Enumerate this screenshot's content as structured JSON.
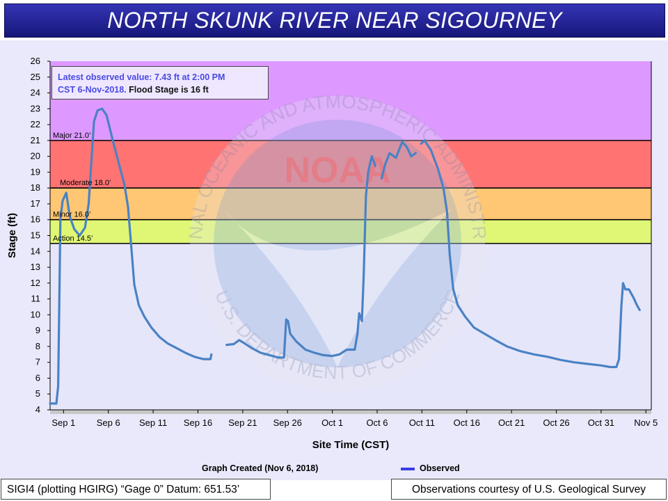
{
  "title": "NORTH SKUNK RIVER NEAR SIGOURNEY",
  "annotation": {
    "line1": "Latest observed value: 7.43 ft at 2:00 PM",
    "line2_highlight": "CST 6-Nov-2018.",
    "line2_rest": " Flood Stage is 16 ft"
  },
  "watermark": {
    "text": "NATIONAL OCEANIC AND ATMOSPHERIC ADMINISTRATION",
    "bottom_text": "U.S. DEPARTMENT OF COMMERCE",
    "logo": "NOAA"
  },
  "graph_created": "Graph Created (Nov 6, 2018)",
  "legend": {
    "observed": "Observed"
  },
  "footer": {
    "left": "SIGI4 (plotting HGIRG) “Gage 0” Datum: 651.53’",
    "right": "Observations courtesy of U.S. Geological Survey"
  },
  "colors": {
    "major": "#dd99ff",
    "moderate": "#ff7373",
    "minor": "#ffc773",
    "action": "#dff774",
    "line": "#4a82c4",
    "title_bg": "#26269a"
  },
  "chart_data": {
    "type": "line",
    "xlabel": "Site Time (CST)",
    "ylabel": "Stage (ft)",
    "ylim": [
      4,
      26
    ],
    "xlim": [
      -1.5,
      65.6
    ],
    "x_ticks": [
      {
        "label": "Sep 1",
        "day": 0
      },
      {
        "label": "Sep 6",
        "day": 5
      },
      {
        "label": "Sep 11",
        "day": 10
      },
      {
        "label": "Sep 16",
        "day": 15
      },
      {
        "label": "Sep 21",
        "day": 20
      },
      {
        "label": "Sep 26",
        "day": 25
      },
      {
        "label": "Oct 1",
        "day": 30
      },
      {
        "label": "Oct 6",
        "day": 35
      },
      {
        "label": "Oct 11",
        "day": 40
      },
      {
        "label": "Oct 16",
        "day": 45
      },
      {
        "label": "Oct 21",
        "day": 50
      },
      {
        "label": "Oct 26",
        "day": 55
      },
      {
        "label": "Oct 31",
        "day": 60
      },
      {
        "label": "Nov 5",
        "day": 65
      }
    ],
    "y_ticks": [
      4,
      5,
      6,
      7,
      8,
      9,
      10,
      11,
      12,
      13,
      14,
      15,
      16,
      17,
      18,
      19,
      20,
      21,
      22,
      23,
      24,
      25,
      26
    ],
    "thresholds": [
      {
        "name": "major",
        "label": "Major 21.0’",
        "value": 21.0
      },
      {
        "name": "moderate",
        "label": "Moderate 18.0’",
        "value": 18.0
      },
      {
        "name": "minor",
        "label": "Minor 16.0’",
        "value": 16.0
      },
      {
        "name": "action",
        "label": "Action 14.5’",
        "value": 14.5
      }
    ],
    "series": [
      {
        "name": "Observed",
        "segments": [
          [
            [
              -1.5,
              4.4
            ],
            [
              -0.8,
              4.4
            ],
            [
              -0.6,
              5.5
            ],
            [
              -0.35,
              16.0
            ],
            [
              -0.1,
              17.2
            ],
            [
              0.3,
              17.7
            ],
            [
              0.7,
              16.2
            ],
            [
              1.2,
              15.4
            ],
            [
              1.8,
              15.0
            ],
            [
              2.4,
              15.5
            ],
            [
              2.8,
              17.0
            ],
            [
              3.1,
              19.6
            ],
            [
              3.4,
              22.2
            ],
            [
              3.8,
              22.9
            ],
            [
              4.3,
              23.0
            ],
            [
              4.8,
              22.6
            ],
            [
              5.5,
              21.0
            ],
            [
              6.2,
              19.5
            ],
            [
              6.8,
              18.2
            ],
            [
              7.2,
              16.8
            ],
            [
              7.6,
              14.0
            ],
            [
              7.9,
              11.9
            ],
            [
              8.4,
              10.6
            ],
            [
              9.0,
              9.9
            ],
            [
              9.8,
              9.2
            ],
            [
              10.7,
              8.6
            ],
            [
              11.6,
              8.2
            ],
            [
              12.6,
              7.9
            ],
            [
              13.6,
              7.6
            ],
            [
              14.6,
              7.35
            ],
            [
              15.6,
              7.2
            ],
            [
              16.4,
              7.2
            ],
            [
              16.5,
              7.5
            ]
          ],
          [
            [
              18.2,
              8.1
            ],
            [
              19.0,
              8.15
            ],
            [
              19.6,
              8.4
            ],
            [
              20.2,
              8.2
            ],
            [
              21.0,
              7.9
            ],
            [
              22.0,
              7.6
            ],
            [
              23.0,
              7.45
            ],
            [
              24.0,
              7.3
            ],
            [
              24.6,
              7.3
            ],
            [
              24.85,
              9.7
            ],
            [
              25.05,
              9.6
            ],
            [
              25.3,
              8.8
            ],
            [
              26.0,
              8.3
            ],
            [
              27.0,
              7.8
            ],
            [
              28.0,
              7.6
            ],
            [
              29.0,
              7.45
            ],
            [
              30.0,
              7.4
            ],
            [
              30.8,
              7.5
            ],
            [
              31.6,
              7.8
            ],
            [
              32.5,
              7.8
            ],
            [
              32.8,
              8.8
            ],
            [
              33.0,
              10.1
            ],
            [
              33.3,
              9.6
            ],
            [
              33.5,
              12.5
            ],
            [
              33.75,
              17.5
            ],
            [
              34.0,
              19.0
            ],
            [
              34.4,
              20.0
            ],
            [
              34.8,
              19.4
            ]
          ],
          [
            [
              35.5,
              18.6
            ],
            [
              35.9,
              19.5
            ],
            [
              36.4,
              20.2
            ],
            [
              37.1,
              19.9
            ],
            [
              37.8,
              20.9
            ],
            [
              38.3,
              20.6
            ],
            [
              38.8,
              20.0
            ],
            [
              39.3,
              20.2
            ]
          ],
          [
            [
              39.9,
              20.8
            ],
            [
              40.3,
              21.0
            ],
            [
              41.0,
              20.4
            ],
            [
              41.8,
              19.2
            ],
            [
              42.4,
              18.0
            ],
            [
              42.8,
              16.5
            ],
            [
              43.1,
              13.8
            ],
            [
              43.5,
              11.6
            ],
            [
              44.0,
              10.6
            ],
            [
              44.8,
              9.9
            ],
            [
              45.8,
              9.2
            ],
            [
              47.0,
              8.8
            ],
            [
              48.2,
              8.4
            ],
            [
              49.5,
              8.0
            ],
            [
              51.0,
              7.7
            ],
            [
              52.5,
              7.5
            ],
            [
              54.0,
              7.35
            ],
            [
              55.5,
              7.15
            ],
            [
              57.0,
              7.0
            ],
            [
              58.5,
              6.9
            ],
            [
              60.0,
              6.8
            ],
            [
              61.0,
              6.7
            ],
            [
              61.7,
              6.7
            ],
            [
              62.0,
              7.2
            ],
            [
              62.25,
              10.5
            ],
            [
              62.45,
              12.0
            ],
            [
              62.7,
              11.6
            ],
            [
              63.1,
              11.6
            ],
            [
              63.6,
              11.1
            ],
            [
              64.0,
              10.6
            ],
            [
              64.3,
              10.3
            ]
          ]
        ]
      }
    ]
  }
}
